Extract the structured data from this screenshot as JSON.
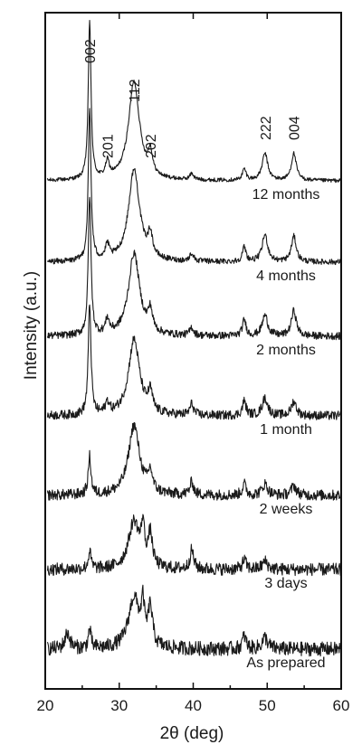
{
  "chart_data": {
    "type": "line",
    "xlabel": "2θ (deg)",
    "ylabel": "Intensity (a.u.)",
    "xlim": [
      20,
      60
    ],
    "x_ticks": [
      20,
      30,
      40,
      50,
      60
    ],
    "grid": false,
    "legend": "none",
    "peak_labels": [
      {
        "label": "002",
        "x": 26.0
      },
      {
        "label": "201",
        "x": 28.4
      },
      {
        "label": "112",
        "x": 32.0
      },
      {
        "label": "202",
        "x": 34.2
      },
      {
        "label": "222",
        "x": 49.7
      },
      {
        "label": "004",
        "x": 53.6
      }
    ],
    "series": [
      {
        "name": "12 months",
        "baseline": 0,
        "peaks": [
          [
            26.0,
            100
          ],
          [
            28.4,
            10
          ],
          [
            32.0,
            62
          ],
          [
            34.2,
            14
          ],
          [
            39.8,
            4
          ],
          [
            46.9,
            7
          ],
          [
            49.7,
            17
          ],
          [
            53.6,
            17
          ]
        ]
      },
      {
        "name": "4 months",
        "baseline": 0,
        "peaks": [
          [
            26.0,
            95
          ],
          [
            28.4,
            9
          ],
          [
            32.0,
            58
          ],
          [
            34.2,
            14
          ],
          [
            39.8,
            5
          ],
          [
            46.9,
            9
          ],
          [
            49.7,
            17
          ],
          [
            53.6,
            16
          ]
        ]
      },
      {
        "name": "2 months",
        "baseline": 0,
        "peaks": [
          [
            26.0,
            88
          ],
          [
            28.4,
            9
          ],
          [
            32.0,
            52
          ],
          [
            34.2,
            13
          ],
          [
            39.8,
            5
          ],
          [
            46.9,
            10
          ],
          [
            49.7,
            13
          ],
          [
            53.6,
            16
          ]
        ]
      },
      {
        "name": "1 month",
        "baseline": 0,
        "peaks": [
          [
            26.0,
            70
          ],
          [
            28.4,
            7
          ],
          [
            32.0,
            48
          ],
          [
            34.2,
            12
          ],
          [
            39.8,
            7
          ],
          [
            46.9,
            9
          ],
          [
            49.7,
            11
          ],
          [
            53.6,
            9
          ]
        ]
      },
      {
        "name": "2 weeks",
        "baseline": 0,
        "peaks": [
          [
            26.0,
            24
          ],
          [
            32.0,
            44
          ],
          [
            34.2,
            12
          ],
          [
            39.8,
            8
          ],
          [
            46.9,
            7
          ],
          [
            49.7,
            7
          ],
          [
            53.6,
            6
          ]
        ]
      },
      {
        "name": "3 days",
        "baseline": 0,
        "peaks": [
          [
            26.0,
            11
          ],
          [
            32.0,
            30
          ],
          [
            33.2,
            22
          ],
          [
            34.2,
            20
          ],
          [
            39.8,
            12
          ],
          [
            46.9,
            6
          ],
          [
            49.7,
            5
          ]
        ]
      },
      {
        "name": "As prepared",
        "baseline": 0,
        "peaks": [
          [
            23.0,
            10
          ],
          [
            26.0,
            12
          ],
          [
            32.0,
            32
          ],
          [
            33.2,
            22
          ],
          [
            34.2,
            24
          ],
          [
            46.9,
            8
          ],
          [
            49.7,
            7
          ]
        ]
      }
    ]
  }
}
